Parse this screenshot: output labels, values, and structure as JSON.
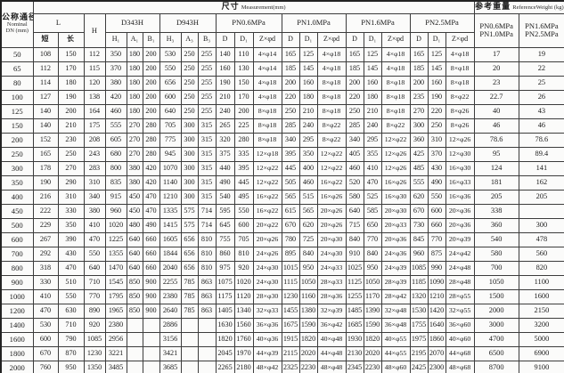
{
  "table": {
    "header": {
      "dn_title": "公称通径",
      "dn_sub1": "Nominal",
      "dn_sub2": "DN (mm)",
      "size_title": "尺寸",
      "size_subtitle": "Measurement(mm)",
      "weight_title": "参考重量",
      "weight_subtitle": "ReferenceWeight (kg)",
      "l_label": "L",
      "l_short": "短",
      "l_long": "长",
      "h_label": "H",
      "d343h_label": "D343H",
      "d943h_label": "D943H",
      "pn_groups": [
        "PN0.6MPa",
        "PN1.0MPa",
        "PN1.6MPa",
        "PN2.5MPa"
      ],
      "d343h_cols": [
        "H₁",
        "A₁",
        "B₁"
      ],
      "d943h_cols": [
        "H₃",
        "A₃",
        "B₃"
      ],
      "pn_cols": [
        "D",
        "D₁",
        "Z×φd"
      ],
      "weight_col1_top": "PN0.6MPa",
      "weight_col1_bottom": "PN1.0MPa",
      "weight_col2_top": "PN1.6MPa",
      "weight_col2_bottom": "PN2.5MPa"
    },
    "rows": [
      [
        "50",
        "108",
        "150",
        "112",
        "350",
        "180",
        "200",
        "530",
        "250",
        "255",
        "140",
        "110",
        "4×φ14",
        "165",
        "125",
        "4×φ18",
        "165",
        "125",
        "4×φ18",
        "165",
        "125",
        "4×φ18",
        "17",
        "19"
      ],
      [
        "65",
        "112",
        "170",
        "115",
        "370",
        "180",
        "200",
        "550",
        "250",
        "255",
        "160",
        "130",
        "4×φ14",
        "185",
        "145",
        "4×φ18",
        "185",
        "145",
        "4×φ18",
        "185",
        "145",
        "8×φ18",
        "20",
        "22"
      ],
      [
        "80",
        "114",
        "180",
        "120",
        "380",
        "180",
        "200",
        "656",
        "250",
        "255",
        "190",
        "150",
        "4×φ18",
        "200",
        "160",
        "8×φ18",
        "200",
        "160",
        "8×φ18",
        "200",
        "160",
        "8×φ18",
        "23",
        "25"
      ],
      [
        "100",
        "127",
        "190",
        "138",
        "420",
        "180",
        "200",
        "600",
        "250",
        "255",
        "210",
        "170",
        "4×φ18",
        "220",
        "180",
        "8×φ18",
        "220",
        "180",
        "8×φ18",
        "235",
        "190",
        "8×φ22",
        "22.7",
        "26"
      ],
      [
        "125",
        "140",
        "200",
        "164",
        "460",
        "180",
        "200",
        "640",
        "250",
        "255",
        "240",
        "200",
        "8×φ18",
        "250",
        "210",
        "8×φ18",
        "250",
        "210",
        "8×φ18",
        "270",
        "220",
        "8×φ26",
        "40",
        "43"
      ],
      [
        "150",
        "140",
        "210",
        "175",
        "555",
        "270",
        "280",
        "705",
        "300",
        "315",
        "265",
        "225",
        "8×φ18",
        "285",
        "240",
        "8×φ22",
        "285",
        "240",
        "8×φ22",
        "300",
        "250",
        "8×φ26",
        "46",
        "46"
      ],
      [
        "200",
        "152",
        "230",
        "208",
        "605",
        "270",
        "280",
        "775",
        "300",
        "315",
        "320",
        "280",
        "8×φ18",
        "340",
        "295",
        "8×φ22",
        "340",
        "295",
        "12×φ22",
        "360",
        "310",
        "12×φ26",
        "78.6",
        "78.6"
      ],
      [
        "250",
        "165",
        "250",
        "243",
        "680",
        "270",
        "280",
        "945",
        "300",
        "315",
        "375",
        "335",
        "12×φ18",
        "395",
        "350",
        "12×φ22",
        "405",
        "355",
        "12×φ26",
        "425",
        "370",
        "12×φ30",
        "95",
        "89.4"
      ],
      [
        "300",
        "178",
        "270",
        "283",
        "800",
        "380",
        "420",
        "1070",
        "300",
        "315",
        "440",
        "395",
        "12×φ22",
        "445",
        "400",
        "12×φ22",
        "460",
        "410",
        "12×φ26",
        "485",
        "430",
        "16×φ30",
        "124",
        "141"
      ],
      [
        "350",
        "190",
        "290",
        "310",
        "835",
        "380",
        "420",
        "1140",
        "300",
        "315",
        "490",
        "445",
        "12×φ22",
        "505",
        "460",
        "16×φ22",
        "520",
        "470",
        "16×φ26",
        "555",
        "490",
        "16×φ33",
        "181",
        "162"
      ],
      [
        "400",
        "216",
        "310",
        "340",
        "915",
        "450",
        "470",
        "1210",
        "300",
        "315",
        "540",
        "495",
        "16×φ22",
        "565",
        "515",
        "16×φ26",
        "580",
        "525",
        "16×φ30",
        "620",
        "550",
        "16×φ36",
        "205",
        "205"
      ],
      [
        "450",
        "222",
        "330",
        "380",
        "960",
        "450",
        "470",
        "1335",
        "575",
        "714",
        "595",
        "550",
        "16×φ22",
        "615",
        "565",
        "20×φ26",
        "640",
        "585",
        "20×φ30",
        "670",
        "600",
        "20×φ36",
        "338",
        ""
      ],
      [
        "500",
        "229",
        "350",
        "410",
        "1020",
        "480",
        "490",
        "1415",
        "575",
        "714",
        "645",
        "600",
        "20×φ22",
        "670",
        "620",
        "20×φ26",
        "715",
        "650",
        "20×φ33",
        "730",
        "660",
        "20×φ36",
        "360",
        "300"
      ],
      [
        "600",
        "267",
        "390",
        "470",
        "1225",
        "640",
        "660",
        "1605",
        "656",
        "810",
        "755",
        "705",
        "20×φ26",
        "780",
        "725",
        "20×φ30",
        "840",
        "770",
        "20×φ36",
        "845",
        "770",
        "20×φ39",
        "540",
        "478"
      ],
      [
        "700",
        "292",
        "430",
        "550",
        "1355",
        "640",
        "660",
        "1844",
        "656",
        "810",
        "860",
        "810",
        "24×φ26",
        "895",
        "840",
        "24×φ30",
        "910",
        "840",
        "24×φ36",
        "960",
        "875",
        "24×φ42",
        "580",
        "560"
      ],
      [
        "800",
        "318",
        "470",
        "640",
        "1470",
        "640",
        "660",
        "2040",
        "656",
        "810",
        "975",
        "920",
        "24×φ30",
        "1015",
        "950",
        "24×φ33",
        "1025",
        "950",
        "24×φ39",
        "1085",
        "990",
        "24×φ48",
        "700",
        "820"
      ],
      [
        "900",
        "330",
        "510",
        "710",
        "1545",
        "850",
        "900",
        "2255",
        "785",
        "863",
        "1075",
        "1020",
        "24×φ30",
        "1115",
        "1050",
        "28×φ33",
        "1125",
        "1050",
        "28×φ39",
        "1185",
        "1090",
        "28×φ48",
        "1050",
        "1100"
      ],
      [
        "1000",
        "410",
        "550",
        "770",
        "1795",
        "850",
        "900",
        "2380",
        "785",
        "863",
        "1175",
        "1120",
        "28×φ30",
        "1230",
        "1160",
        "28×φ36",
        "1255",
        "1170",
        "28×φ42",
        "1320",
        "1210",
        "28×φ55",
        "1500",
        "1600"
      ],
      [
        "1200",
        "470",
        "630",
        "890",
        "1965",
        "850",
        "900",
        "2640",
        "785",
        "863",
        "1405",
        "1340",
        "32×φ33",
        "1455",
        "1380",
        "32×φ39",
        "1485",
        "1390",
        "32×φ48",
        "1530",
        "1420",
        "32×φ55",
        "2000",
        "2150"
      ],
      [
        "1400",
        "530",
        "710",
        "920",
        "2380",
        "",
        "",
        "2886",
        "",
        "",
        "1630",
        "1560",
        "36×φ36",
        "1675",
        "1590",
        "36×φ42",
        "1685",
        "1590",
        "36×φ48",
        "1755",
        "1640",
        "36×φ60",
        "3000",
        "3200"
      ],
      [
        "1600",
        "600",
        "790",
        "1085",
        "2956",
        "",
        "",
        "3156",
        "",
        "",
        "1820",
        "1760",
        "40×φ36",
        "1915",
        "1820",
        "40×φ48",
        "1930",
        "1820",
        "40×φ55",
        "1975",
        "1860",
        "40×φ60",
        "4700",
        "5000"
      ],
      [
        "1800",
        "670",
        "870",
        "1230",
        "3221",
        "",
        "",
        "3421",
        "",
        "",
        "2045",
        "1970",
        "44×φ39",
        "2115",
        "2020",
        "44×φ48",
        "2130",
        "2020",
        "44×φ55",
        "2195",
        "2070",
        "44×φ68",
        "6500",
        "6900"
      ],
      [
        "2000",
        "760",
        "950",
        "1350",
        "3485",
        "",
        "",
        "3685",
        "",
        "",
        "2265",
        "2180",
        "48×φ42",
        "2325",
        "2230",
        "48×φ48",
        "2345",
        "2230",
        "48×φ60",
        "2425",
        "2300",
        "48×φ68",
        "8700",
        "9100"
      ]
    ]
  }
}
